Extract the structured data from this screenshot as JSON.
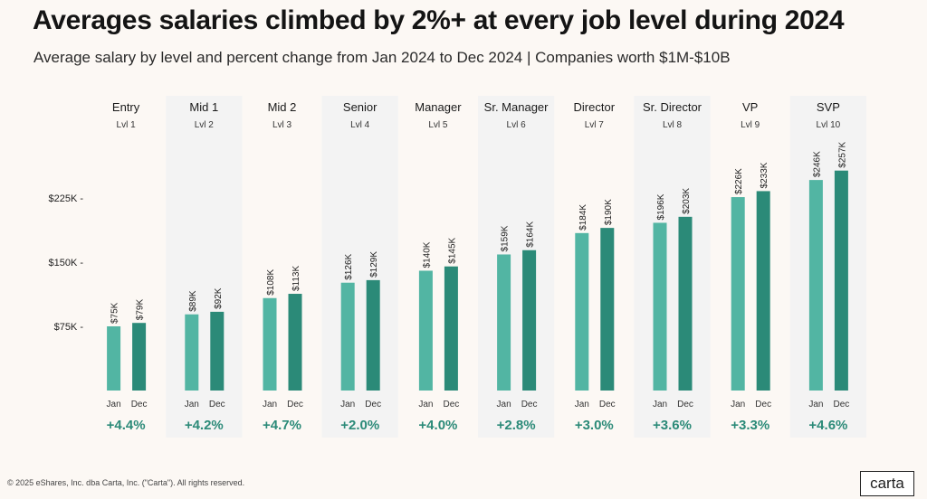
{
  "title": "Averages salaries climbed by 2%+ at every job level during 2024",
  "subtitle": "Average salary by level and percent change from Jan 2024 to Dec 2024  |  Companies worth $1M-$10B",
  "footer": "© 2025 eShares, Inc. dba Carta, Inc. (\"Carta\"). All rights reserved.",
  "logo": "carta",
  "colors": {
    "jan": "#52b5a3",
    "dec": "#2b8a78",
    "pct": "#2b8a78",
    "shade": "#f3f3f3"
  },
  "chart_data": {
    "type": "bar",
    "title": "Averages salaries climbed by 2%+ at every job level during 2024",
    "xlabel": "",
    "ylabel": "",
    "ylim": [
      0,
      270000
    ],
    "yticks": [
      75000,
      150000,
      225000
    ],
    "ytick_labels": [
      "$75K",
      "$150K",
      "$225K"
    ],
    "grid": false,
    "categories": [
      "Entry",
      "Mid 1",
      "Mid 2",
      "Senior",
      "Manager",
      "Sr. Manager",
      "Director",
      "Sr. Director",
      "VP",
      "SVP"
    ],
    "sublabels": [
      "Lvl 1",
      "Lvl 2",
      "Lvl 3",
      "Lvl 4",
      "Lvl 5",
      "Lvl 6",
      "Lvl 7",
      "Lvl 8",
      "Lvl 9",
      "Lvl 10"
    ],
    "series": [
      {
        "name": "Jan",
        "values": [
          75000,
          89000,
          108000,
          126000,
          140000,
          159000,
          184000,
          196000,
          226000,
          246000
        ],
        "labels": [
          "$75K",
          "$89K",
          "$108K",
          "$126K",
          "$140K",
          "$159K",
          "$184K",
          "$196K",
          "$226K",
          "$246K"
        ]
      },
      {
        "name": "Dec",
        "values": [
          79000,
          92000,
          113000,
          129000,
          145000,
          164000,
          190000,
          203000,
          233000,
          257000
        ],
        "labels": [
          "$79K",
          "$92K",
          "$113K",
          "$129K",
          "$145K",
          "$164K",
          "$190K",
          "$203K",
          "$233K",
          "$257K"
        ]
      }
    ],
    "pct_change": [
      "+4.4%",
      "+4.2%",
      "+4.7%",
      "+2.0%",
      "+4.0%",
      "+2.8%",
      "+3.0%",
      "+3.6%",
      "+3.3%",
      "+4.6%"
    ]
  }
}
